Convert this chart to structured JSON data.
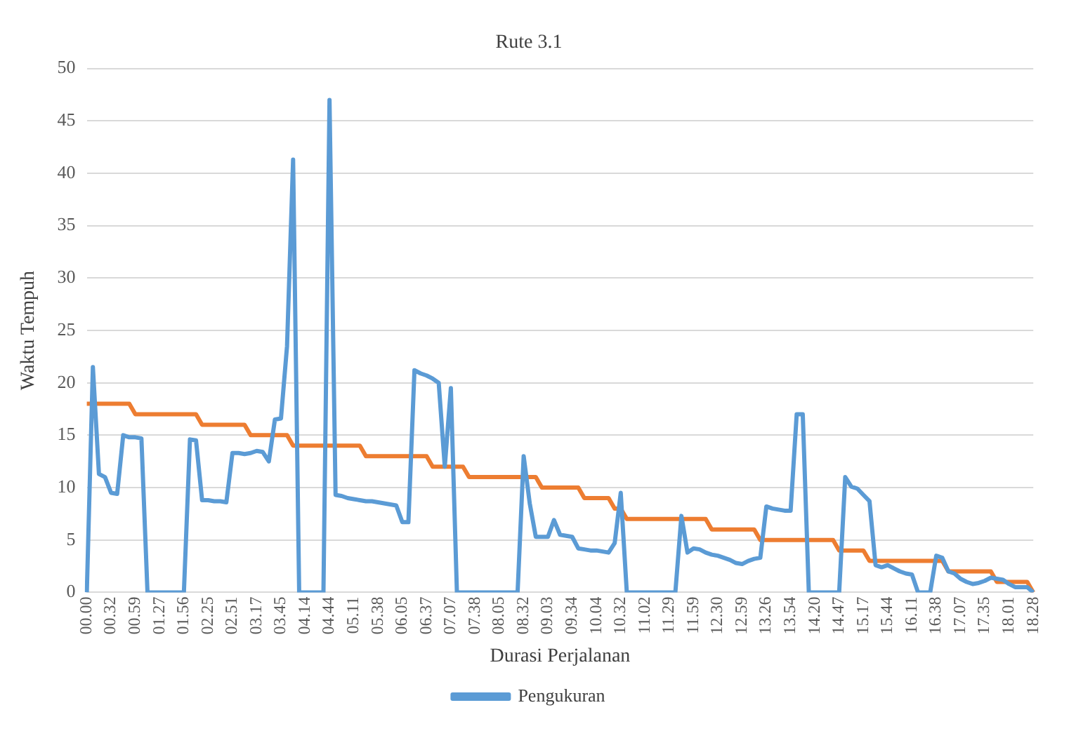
{
  "chart_data": {
    "type": "line",
    "title": "Rute 3.1",
    "xlabel": "Durasi Perjalanan",
    "ylabel": "Waktu Tempuh",
    "categories": [
      "00.00",
      null,
      null,
      null,
      "00.32",
      null,
      null,
      null,
      "00.59",
      null,
      null,
      null,
      "01.27",
      null,
      null,
      null,
      "01.56",
      null,
      null,
      null,
      "02.25",
      null,
      null,
      null,
      "02.51",
      null,
      null,
      null,
      "03.17",
      null,
      null,
      null,
      "03.45",
      null,
      null,
      null,
      "04.14",
      null,
      null,
      null,
      "04.44",
      null,
      null,
      null,
      "05.11",
      null,
      null,
      null,
      "05.38",
      null,
      null,
      null,
      "06.05",
      null,
      null,
      null,
      "06.37",
      null,
      null,
      null,
      "07.07",
      null,
      null,
      null,
      "07.38",
      null,
      null,
      null,
      "08.05",
      null,
      null,
      null,
      "08.32",
      null,
      null,
      null,
      "09.03",
      null,
      null,
      null,
      "09.34",
      null,
      null,
      null,
      "10.04",
      null,
      null,
      null,
      "10.32",
      null,
      null,
      null,
      "11.02",
      null,
      null,
      null,
      "11.29",
      null,
      null,
      null,
      "11.59",
      null,
      null,
      null,
      "12.30",
      null,
      null,
      null,
      "12.59",
      null,
      null,
      null,
      "13.26",
      null,
      null,
      null,
      "13.54",
      null,
      null,
      null,
      "14.20",
      null,
      null,
      null,
      "14.47",
      null,
      null,
      null,
      "15.17",
      null,
      null,
      null,
      "15.44",
      null,
      null,
      null,
      "16.11",
      null,
      null,
      null,
      "16.38",
      null,
      null,
      null,
      "17.07",
      null,
      null,
      null,
      "17.35",
      null,
      null,
      null,
      "18.01",
      null,
      null,
      null,
      "18.28"
    ],
    "series": [
      {
        "name": "Pengukuran",
        "color": "#5b9bd5",
        "values": [
          0,
          21.5,
          11.3,
          11,
          9.5,
          9.4,
          15,
          14.8,
          14.8,
          14.7,
          0,
          0,
          0,
          0,
          0,
          0,
          0,
          14.6,
          14.5,
          8.8,
          8.8,
          8.7,
          8.7,
          8.6,
          13.3,
          13.3,
          13.2,
          13.3,
          13.5,
          13.4,
          12.5,
          16.5,
          16.6,
          23.5,
          41.3,
          0,
          0,
          0,
          0,
          0,
          47,
          9.3,
          9.2,
          9,
          8.9,
          8.8,
          8.7,
          8.7,
          8.6,
          8.5,
          8.4,
          8.3,
          6.7,
          6.7,
          21.2,
          20.9,
          20.7,
          20.4,
          20,
          12,
          19.5,
          0,
          0,
          0,
          0,
          0,
          0,
          0,
          0,
          0,
          0,
          0,
          13,
          8.5,
          5.3,
          5.3,
          5.3,
          6.9,
          5.5,
          5.4,
          5.3,
          4.2,
          4.1,
          4,
          4,
          3.9,
          3.8,
          4.7,
          9.5,
          0,
          0,
          0,
          0,
          0,
          0,
          0,
          0,
          0,
          7.3,
          3.8,
          4.2,
          4.1,
          3.8,
          3.6,
          3.5,
          3.3,
          3.1,
          2.8,
          2.7,
          3,
          3.2,
          3.3,
          8.2,
          8,
          7.9,
          7.8,
          7.8,
          17,
          17,
          0,
          0,
          0,
          0,
          0,
          0,
          11,
          10.1,
          9.9,
          9.3,
          8.7,
          2.6,
          2.4,
          2.6,
          2.3,
          2,
          1.8,
          1.7,
          0,
          0,
          0,
          3.5,
          3.3,
          2,
          1.8,
          1.3,
          1,
          0.8,
          0.9,
          1.1,
          1.4,
          1.3,
          1.2,
          0.8,
          0.5,
          0.5,
          0.5,
          0
        ]
      },
      {
        "color": "#ed7d31",
        "values": [
          18,
          18,
          18,
          18,
          18,
          18,
          18,
          18,
          17,
          17,
          17,
          17,
          17,
          17,
          17,
          17,
          17,
          17,
          17,
          16,
          16,
          16,
          16,
          16,
          16,
          16,
          16,
          15,
          15,
          15,
          15,
          15,
          15,
          15,
          14,
          14,
          14,
          14,
          14,
          14,
          14,
          14,
          14,
          14,
          14,
          14,
          13,
          13,
          13,
          13,
          13,
          13,
          13,
          13,
          13,
          13,
          13,
          12,
          12,
          12,
          12,
          12,
          12,
          11,
          11,
          11,
          11,
          11,
          11,
          11,
          11,
          11,
          11,
          11,
          11,
          10,
          10,
          10,
          10,
          10,
          10,
          10,
          9,
          9,
          9,
          9,
          9,
          8,
          8,
          7,
          7,
          7,
          7,
          7,
          7,
          7,
          7,
          7,
          7,
          7,
          7,
          7,
          7,
          6,
          6,
          6,
          6,
          6,
          6,
          6,
          6,
          5,
          5,
          5,
          5,
          5,
          5,
          5,
          5,
          5,
          5,
          5,
          5,
          5,
          4,
          4,
          4,
          4,
          4,
          3,
          3,
          3,
          3,
          3,
          3,
          3,
          3,
          3,
          3,
          3,
          3,
          3,
          2,
          2,
          2,
          2,
          2,
          2,
          2,
          2,
          1,
          1,
          1,
          1,
          1,
          1,
          0
        ]
      }
    ],
    "ylim": [
      0,
      50
    ],
    "yticks": [
      0,
      5,
      10,
      15,
      20,
      25,
      30,
      35,
      40,
      45,
      50
    ],
    "grid": "y",
    "legend": "bottom",
    "marker": "none",
    "line_style": "solid"
  }
}
